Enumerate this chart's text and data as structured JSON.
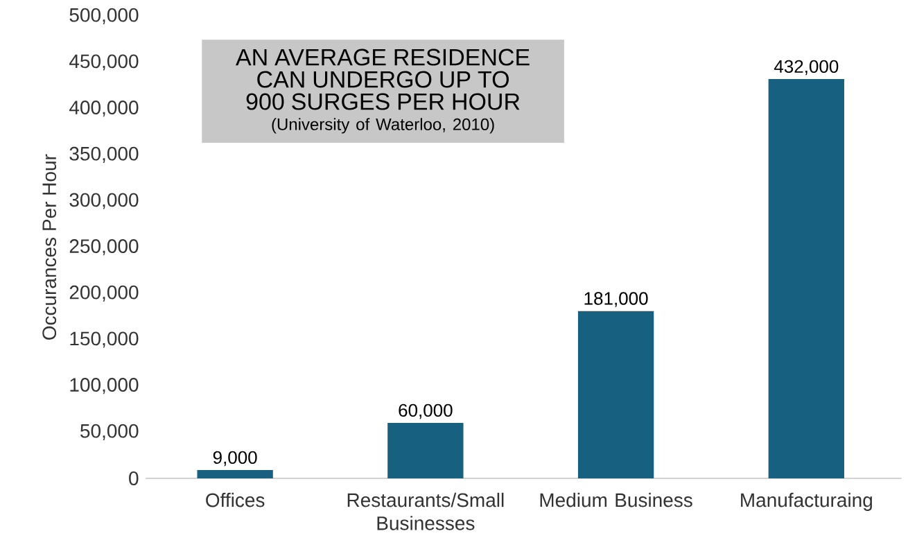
{
  "chart_data": {
    "type": "bar",
    "ylabel": "Occurances Per Hour",
    "categories": [
      "Offices",
      "Restaurants/Small Businesses",
      "Medium Business",
      "Manufacturaing"
    ],
    "values": [
      9000,
      60000,
      181000,
      432000
    ],
    "value_labels": [
      "9,000",
      "60,000",
      "181,000",
      "432,000"
    ],
    "color": "#17607f",
    "ylim": [
      0,
      500000
    ],
    "yticks": [
      0,
      {
        "value": 50000,
        "label": "50,000"
      },
      {
        "value": 100000,
        "label": "100,000"
      },
      {
        "value": 150000,
        "label": "150,000"
      },
      {
        "value": 200000,
        "label": "200,000"
      },
      {
        "value": 250000,
        "label": "250,000"
      },
      {
        "value": 300000,
        "label": "300,000"
      },
      {
        "value": 350000,
        "label": "350,000"
      },
      {
        "value": 400000,
        "label": "400,000"
      },
      {
        "value": 450000,
        "label": "450,000"
      },
      {
        "value": 500000,
        "label": "500,000"
      }
    ],
    "annotations": [
      "AN AVERAGE RESIDENCE CAN UNDERGO UP TO 900 SURGES PER HOUR",
      "(University of Waterloo, 2010)"
    ]
  }
}
